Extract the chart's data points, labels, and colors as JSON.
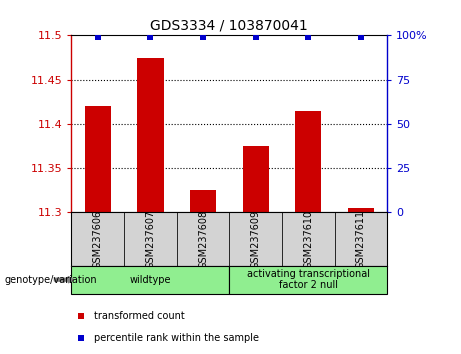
{
  "title": "GDS3334 / 103870041",
  "samples": [
    "GSM237606",
    "GSM237607",
    "GSM237608",
    "GSM237609",
    "GSM237610",
    "GSM237611"
  ],
  "transformed_counts": [
    11.42,
    11.475,
    11.325,
    11.375,
    11.415,
    11.305
  ],
  "percentile_ranks": [
    99,
    99,
    99,
    99,
    99,
    99
  ],
  "ylim_left": [
    11.3,
    11.5
  ],
  "ylim_right": [
    0,
    100
  ],
  "yticks_left": [
    11.3,
    11.35,
    11.4,
    11.45,
    11.5
  ],
  "ytick_labels_left": [
    "11.3",
    "11.35",
    "11.4",
    "11.45",
    "11.5"
  ],
  "yticks_right": [
    0,
    25,
    50,
    75,
    100
  ],
  "ytick_labels_right": [
    "0",
    "25",
    "50",
    "75",
    "100%"
  ],
  "grid_yticks": [
    11.35,
    11.4,
    11.45
  ],
  "bar_color": "#cc0000",
  "scatter_color": "#0000cc",
  "groups": [
    {
      "label": "wildtype",
      "samples": [
        0,
        1,
        2
      ],
      "color": "#90ee90"
    },
    {
      "label": "activating transcriptional\nfactor 2 null",
      "samples": [
        3,
        4,
        5
      ],
      "color": "#90ee90"
    }
  ],
  "sample_box_color": "#d3d3d3",
  "legend_items": [
    {
      "color": "#cc0000",
      "label": "transformed count"
    },
    {
      "color": "#0000cc",
      "label": "percentile rank within the sample"
    }
  ],
  "genotype_label": "genotype/variation"
}
